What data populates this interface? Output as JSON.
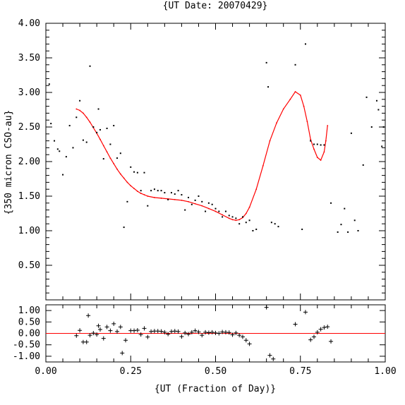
{
  "chart_data": [
    {
      "type": "scatter",
      "title": "{UT Date: 20070429}",
      "xlabel": "",
      "ylabel": "{350 micron CSO-au}",
      "xlim": [
        0.0,
        1.0
      ],
      "ylim": [
        0.0,
        4.0
      ],
      "yticks": [
        "0.50",
        "1.00",
        "1.50",
        "2.00",
        "2.50",
        "3.00",
        "3.50",
        "4.00"
      ],
      "series": [
        {
          "kind": "points",
          "color": "#000000",
          "points": [
            [
              0.01,
              3.12
            ],
            [
              0.015,
              2.55
            ],
            [
              0.025,
              2.3
            ],
            [
              0.035,
              2.18
            ],
            [
              0.04,
              2.15
            ],
            [
              0.05,
              1.81
            ],
            [
              0.06,
              2.07
            ],
            [
              0.07,
              2.52
            ],
            [
              0.08,
              2.2
            ],
            [
              0.09,
              2.64
            ],
            [
              0.1,
              2.88
            ],
            [
              0.11,
              2.31
            ],
            [
              0.12,
              2.28
            ],
            [
              0.13,
              3.38
            ],
            [
              0.14,
              2.5
            ],
            [
              0.15,
              2.42
            ],
            [
              0.155,
              2.76
            ],
            [
              0.16,
              2.46
            ],
            [
              0.17,
              2.04
            ],
            [
              0.18,
              2.48
            ],
            [
              0.19,
              2.25
            ],
            [
              0.2,
              2.52
            ],
            [
              0.21,
              2.05
            ],
            [
              0.22,
              2.12
            ],
            [
              0.23,
              1.05
            ],
            [
              0.24,
              1.42
            ],
            [
              0.25,
              1.92
            ],
            [
              0.26,
              1.85
            ],
            [
              0.27,
              1.84
            ],
            [
              0.28,
              1.58
            ],
            [
              0.29,
              1.84
            ],
            [
              0.3,
              1.36
            ],
            [
              0.31,
              1.58
            ],
            [
              0.32,
              1.6
            ],
            [
              0.33,
              1.58
            ],
            [
              0.34,
              1.58
            ],
            [
              0.35,
              1.55
            ],
            [
              0.36,
              1.45
            ],
            [
              0.37,
              1.55
            ],
            [
              0.38,
              1.53
            ],
            [
              0.39,
              1.58
            ],
            [
              0.4,
              1.52
            ],
            [
              0.41,
              1.3
            ],
            [
              0.42,
              1.48
            ],
            [
              0.43,
              1.38
            ],
            [
              0.44,
              1.44
            ],
            [
              0.45,
              1.5
            ],
            [
              0.46,
              1.42
            ],
            [
              0.47,
              1.28
            ],
            [
              0.48,
              1.4
            ],
            [
              0.49,
              1.38
            ],
            [
              0.5,
              1.32
            ],
            [
              0.51,
              1.28
            ],
            [
              0.52,
              1.2
            ],
            [
              0.53,
              1.28
            ],
            [
              0.54,
              1.22
            ],
            [
              0.55,
              1.2
            ],
            [
              0.56,
              1.18
            ],
            [
              0.57,
              1.1
            ],
            [
              0.58,
              1.2
            ],
            [
              0.59,
              1.12
            ],
            [
              0.6,
              1.15
            ],
            [
              0.61,
              1.0
            ],
            [
              0.62,
              1.02
            ],
            [
              0.65,
              3.43
            ],
            [
              0.655,
              3.08
            ],
            [
              0.665,
              1.12
            ],
            [
              0.675,
              1.1
            ],
            [
              0.685,
              1.06
            ],
            [
              0.735,
              3.4
            ],
            [
              0.755,
              1.02
            ],
            [
              0.765,
              3.7
            ],
            [
              0.78,
              2.3
            ],
            [
              0.79,
              2.25
            ],
            [
              0.8,
              2.25
            ],
            [
              0.81,
              2.24
            ],
            [
              0.82,
              2.24
            ],
            [
              0.84,
              1.4
            ],
            [
              0.86,
              0.98
            ],
            [
              0.87,
              1.09
            ],
            [
              0.88,
              1.32
            ],
            [
              0.89,
              0.98
            ],
            [
              0.9,
              2.41
            ],
            [
              0.91,
              1.15
            ],
            [
              0.92,
              1.0
            ],
            [
              0.935,
              1.95
            ],
            [
              0.945,
              2.93
            ],
            [
              0.96,
              2.5
            ],
            [
              0.975,
              2.88
            ],
            [
              0.98,
              2.75
            ],
            [
              0.99,
              2.22
            ],
            [
              0.995,
              2.5
            ]
          ]
        },
        {
          "kind": "line",
          "color": "#ff0000",
          "points": [
            [
              0.09,
              2.76
            ],
            [
              0.1,
              2.74
            ],
            [
              0.11,
              2.7
            ],
            [
              0.12,
              2.64
            ],
            [
              0.13,
              2.57
            ],
            [
              0.14,
              2.49
            ],
            [
              0.15,
              2.41
            ],
            [
              0.16,
              2.32
            ],
            [
              0.17,
              2.23
            ],
            [
              0.18,
              2.14
            ],
            [
              0.19,
              2.05
            ],
            [
              0.2,
              1.97
            ],
            [
              0.21,
              1.89
            ],
            [
              0.22,
              1.82
            ],
            [
              0.23,
              1.76
            ],
            [
              0.24,
              1.7
            ],
            [
              0.25,
              1.65
            ],
            [
              0.26,
              1.61
            ],
            [
              0.27,
              1.57
            ],
            [
              0.28,
              1.54
            ],
            [
              0.29,
              1.52
            ],
            [
              0.3,
              1.5
            ],
            [
              0.32,
              1.48
            ],
            [
              0.34,
              1.47
            ],
            [
              0.36,
              1.46
            ],
            [
              0.38,
              1.45
            ],
            [
              0.4,
              1.44
            ],
            [
              0.42,
              1.42
            ],
            [
              0.44,
              1.39
            ],
            [
              0.46,
              1.36
            ],
            [
              0.48,
              1.32
            ],
            [
              0.5,
              1.28
            ],
            [
              0.52,
              1.23
            ],
            [
              0.54,
              1.18
            ],
            [
              0.55,
              1.16
            ],
            [
              0.56,
              1.15
            ],
            [
              0.57,
              1.16
            ],
            [
              0.58,
              1.19
            ],
            [
              0.59,
              1.25
            ],
            [
              0.6,
              1.34
            ],
            [
              0.62,
              1.6
            ],
            [
              0.64,
              1.94
            ],
            [
              0.66,
              2.3
            ],
            [
              0.68,
              2.56
            ],
            [
              0.7,
              2.76
            ],
            [
              0.72,
              2.9
            ],
            [
              0.735,
              3.01
            ],
            [
              0.75,
              2.96
            ],
            [
              0.76,
              2.8
            ],
            [
              0.77,
              2.58
            ],
            [
              0.78,
              2.32
            ],
            [
              0.79,
              2.18
            ],
            [
              0.8,
              2.06
            ],
            [
              0.81,
              2.02
            ],
            [
              0.82,
              2.14
            ],
            [
              0.825,
              2.3
            ],
            [
              0.83,
              2.52
            ]
          ]
        }
      ]
    },
    {
      "type": "scatter",
      "title": "",
      "xlabel": "{UT (Fraction of Day)}",
      "ylabel": "",
      "xlim": [
        0.0,
        1.0
      ],
      "ylim": [
        -1.25,
        1.25
      ],
      "xticks": [
        "0.00",
        "0.25",
        "0.50",
        "0.75",
        "1.00"
      ],
      "yticks": [
        "-1.00",
        "-0.50",
        "0.00",
        "0.50",
        "1.00"
      ],
      "series": [
        {
          "kind": "residuals",
          "color": "#000000",
          "points": [
            [
              0.09,
              -0.1
            ],
            [
              0.1,
              0.13
            ],
            [
              0.11,
              -0.38
            ],
            [
              0.12,
              -0.38
            ],
            [
              0.125,
              0.78
            ],
            [
              0.13,
              -0.08
            ],
            [
              0.14,
              0.01
            ],
            [
              0.15,
              -0.05
            ],
            [
              0.155,
              0.33
            ],
            [
              0.16,
              0.17
            ],
            [
              0.17,
              -0.22
            ],
            [
              0.18,
              0.28
            ],
            [
              0.19,
              0.12
            ],
            [
              0.2,
              0.42
            ],
            [
              0.21,
              0.08
            ],
            [
              0.22,
              0.28
            ],
            [
              0.225,
              -0.86
            ],
            [
              0.235,
              -0.3
            ],
            [
              0.25,
              0.12
            ],
            [
              0.26,
              0.12
            ],
            [
              0.27,
              0.14
            ],
            [
              0.28,
              -0.05
            ],
            [
              0.29,
              0.22
            ],
            [
              0.3,
              -0.16
            ],
            [
              0.31,
              0.08
            ],
            [
              0.32,
              0.1
            ],
            [
              0.33,
              0.1
            ],
            [
              0.34,
              0.09
            ],
            [
              0.35,
              0.05
            ],
            [
              0.36,
              -0.03
            ],
            [
              0.37,
              0.08
            ],
            [
              0.38,
              0.1
            ],
            [
              0.39,
              0.08
            ],
            [
              0.4,
              -0.14
            ],
            [
              0.41,
              0.02
            ],
            [
              0.42,
              -0.03
            ],
            [
              0.43,
              0.05
            ],
            [
              0.44,
              0.12
            ],
            [
              0.45,
              0.06
            ],
            [
              0.46,
              -0.08
            ],
            [
              0.47,
              0.05
            ],
            [
              0.48,
              0.03
            ],
            [
              0.49,
              0.05
            ],
            [
              0.5,
              0.02
            ],
            [
              0.51,
              0.0
            ],
            [
              0.52,
              0.06
            ],
            [
              0.53,
              0.05
            ],
            [
              0.54,
              0.04
            ],
            [
              0.55,
              -0.06
            ],
            [
              0.56,
              0.02
            ],
            [
              0.57,
              -0.08
            ],
            [
              0.58,
              -0.15
            ],
            [
              0.59,
              -0.3
            ],
            [
              0.6,
              -0.46
            ],
            [
              0.65,
              1.14
            ],
            [
              0.66,
              -0.96
            ],
            [
              0.67,
              -1.12
            ],
            [
              0.735,
              0.4
            ],
            [
              0.765,
              0.93
            ],
            [
              0.78,
              -0.28
            ],
            [
              0.79,
              -0.15
            ],
            [
              0.8,
              0.05
            ],
            [
              0.81,
              0.18
            ],
            [
              0.82,
              0.26
            ],
            [
              0.83,
              0.29
            ],
            [
              0.84,
              -0.35
            ]
          ]
        },
        {
          "kind": "zero-line",
          "color": "#ff0000",
          "points": [
            [
              0.0,
              0.0
            ],
            [
              1.0,
              0.0
            ]
          ]
        }
      ]
    }
  ]
}
